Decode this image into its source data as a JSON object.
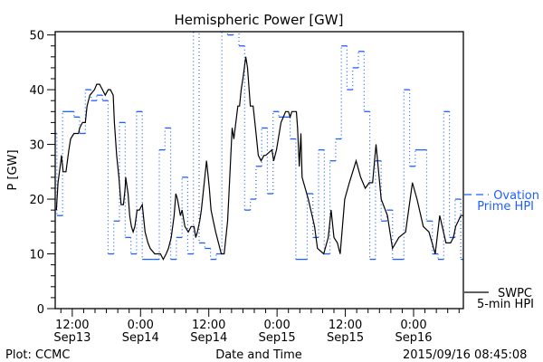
{
  "chart_data": {
    "type": "line",
    "title": "Hemispheric Power [GW]",
    "xlabel": "Date and Time",
    "ylabel": "P [GW]",
    "x_units": "hours since 2015-09-13 00:00",
    "xlim": [
      9,
      80.75
    ],
    "ylim": [
      0,
      50.6
    ],
    "yticks": [
      0,
      10,
      20,
      30,
      40,
      50
    ],
    "xticks": [
      {
        "x": 12,
        "time": "12:00",
        "date": "Sep13"
      },
      {
        "x": 24,
        "time": "0:00",
        "date": "Sep14"
      },
      {
        "x": 36,
        "time": "12:00",
        "date": "Sep14"
      },
      {
        "x": 48,
        "time": "0:00",
        "date": "Sep15"
      },
      {
        "x": 60,
        "time": "12:00",
        "date": "Sep15"
      },
      {
        "x": 72,
        "time": "0:00",
        "date": "Sep16"
      }
    ],
    "legend_placement": "right",
    "series": [
      {
        "name": "Ovation Prime HPI",
        "legend_line1": "Ovation",
        "legend_line2": "Prime HPI",
        "color": "#1f5fff",
        "style": "step-dotted",
        "start": 8.3,
        "step_hours": 1,
        "values": [
          32,
          17,
          36,
          36,
          35,
          32,
          40,
          38,
          39,
          38,
          10,
          16,
          34,
          13,
          10,
          36,
          9,
          9,
          9,
          29,
          33,
          9,
          13,
          24,
          10,
          52,
          12,
          11,
          9,
          10,
          52,
          50,
          52,
          48,
          18,
          20,
          26,
          33,
          21,
          36,
          35,
          35,
          31,
          9,
          9,
          21,
          13,
          29,
          10,
          27,
          31,
          48,
          40,
          44,
          47,
          36,
          9,
          27,
          16,
          18,
          9,
          9,
          40,
          26,
          29,
          29,
          16,
          10,
          9,
          36,
          13,
          20,
          9
        ]
      },
      {
        "name": "SWPC 5-min HPI",
        "legend_line1": "SWPC",
        "legend_line2": "5-min HPI",
        "color": "#000000",
        "style": "solid",
        "x": [
          9.2,
          9.5,
          10.0,
          10.1,
          10.4,
          10.9,
          11.4,
          11.7,
          12.3,
          13.1,
          13.3,
          13.8,
          14.3,
          14.6,
          15.1,
          15.9,
          16.3,
          16.8,
          17.3,
          17.8,
          18.3,
          18.7,
          19.2,
          19.4,
          19.8,
          20.2,
          20.5,
          20.6,
          21.0,
          21.3,
          21.4,
          21.8,
          22.1,
          22.4,
          22.7,
          23.0,
          23.4,
          23.8,
          24.3,
          24.8,
          25.3,
          25.7,
          26.5,
          27.5,
          28.0,
          28.5,
          28.9,
          29.4,
          29.9,
          30.2,
          30.5,
          31.0,
          31.3,
          31.8,
          32.4,
          32.9,
          33.4,
          33.7,
          34.0,
          34.4,
          34.7,
          35.0,
          35.3,
          35.6,
          35.8,
          36.1,
          36.4,
          36.8,
          37.2,
          37.7,
          38.2,
          38.7,
          39.0,
          39.3,
          39.6,
          40.1,
          40.4,
          41.1,
          41.4,
          41.7,
          42.0,
          42.5,
          42.8,
          43.3,
          43.8,
          44.2,
          44.7,
          45.2,
          45.7,
          46.0,
          47.1,
          47.4,
          47.9,
          48.7,
          49.5,
          50.0,
          50.3,
          50.6,
          51.4,
          51.6,
          51.9,
          52.2,
          52.4,
          53.5,
          54.6,
          55.1,
          56.2,
          57.0,
          57.5,
          58.0,
          58.6,
          59.1,
          59.9,
          60.7,
          61.9,
          62.7,
          63.5,
          64.2,
          64.8,
          65.4,
          66.3,
          67.4,
          68.3,
          69.4,
          70.6,
          71.8,
          72.6,
          73.7,
          74.7,
          75.8,
          76.6,
          77.7,
          78.5,
          79.0,
          79.4,
          80.3,
          80.9
        ],
        "values": [
          18,
          23,
          27,
          28,
          25,
          25,
          29,
          31,
          32,
          32,
          33,
          34,
          34,
          37,
          39,
          40,
          41,
          41,
          40,
          39,
          40,
          40,
          39,
          34,
          28,
          24,
          20,
          19,
          19,
          22,
          24,
          21,
          17,
          15,
          14,
          15,
          18,
          18,
          19,
          14,
          12,
          11,
          10,
          10,
          9,
          10,
          11,
          13,
          17,
          21,
          20,
          17,
          18,
          15,
          14,
          15,
          15,
          13,
          14,
          16,
          18,
          21,
          24,
          27,
          25,
          22,
          18,
          16,
          14,
          12,
          10,
          10,
          13,
          16,
          22,
          33,
          31,
          37,
          37,
          40,
          42,
          46,
          44,
          37,
          37,
          33,
          28,
          27,
          28,
          28,
          29,
          27,
          29,
          34,
          36,
          36,
          35,
          36,
          36,
          33,
          26,
          32,
          24,
          20,
          15,
          11,
          10,
          13,
          18,
          13,
          12,
          10,
          20,
          23,
          27,
          24,
          22,
          23,
          23,
          30,
          20,
          17,
          11,
          13,
          14,
          23,
          20,
          15,
          14,
          10,
          17,
          12,
          12,
          13,
          15,
          17,
          17
        ]
      }
    ]
  },
  "footer": {
    "credit": "Plot: CCMC",
    "timestamp": "2015/09/16 08:45:08"
  }
}
